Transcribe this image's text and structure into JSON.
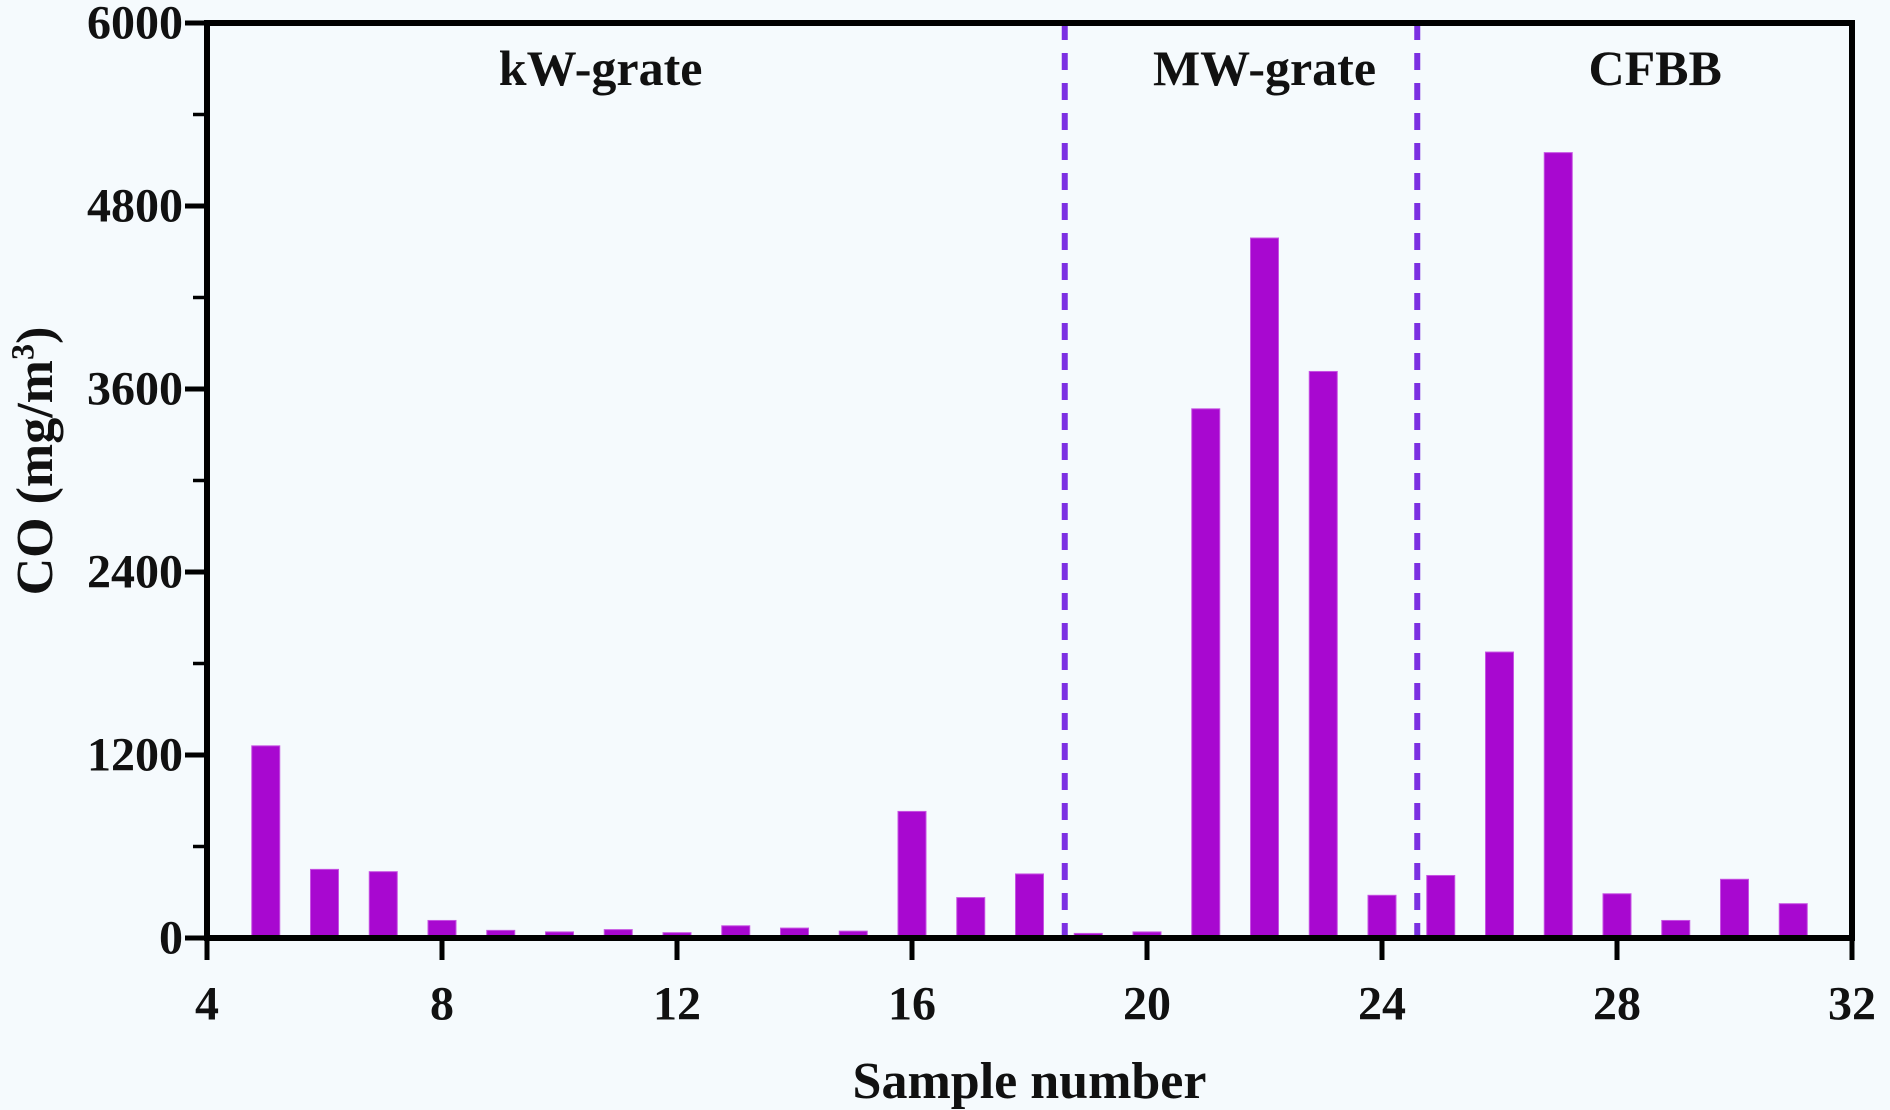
{
  "figure": {
    "background": "#F5FAFD",
    "x_axis_title": "Sample number",
    "y_axis_title_prefix": "CO (mg/m",
    "y_axis_title_sup": "3",
    "y_axis_title_suffix": ")"
  },
  "chart_data": {
    "type": "bar",
    "title": "",
    "xlabel": "Sample number",
    "ylabel": "CO (mg/m3)",
    "xlim": [
      4,
      32
    ],
    "ylim": [
      0,
      6000
    ],
    "x_ticks": [
      4,
      8,
      12,
      16,
      20,
      24,
      28,
      32
    ],
    "y_ticks": [
      0,
      1200,
      2400,
      3600,
      4800,
      6000
    ],
    "y_minor_step": 600,
    "grid": "off",
    "legend": "none",
    "bar_color": "#A808D0",
    "bar_edge_color": "#C653E2",
    "separator_color": "#7B2FE2",
    "axis_color": "#000000",
    "x": [
      5,
      6,
      7,
      8,
      9,
      10,
      11,
      12,
      13,
      14,
      15,
      16,
      17,
      18,
      19,
      20,
      21,
      22,
      23,
      24,
      25,
      26,
      27,
      28,
      29,
      30,
      31
    ],
    "values": [
      1260,
      450,
      435,
      115,
      50,
      40,
      55,
      35,
      80,
      65,
      45,
      830,
      265,
      420,
      30,
      40,
      3470,
      4590,
      3715,
      280,
      410,
      1875,
      5150,
      290,
      115,
      385,
      225
    ],
    "separators_x": [
      18.6,
      24.6
    ],
    "sections": [
      {
        "label": "kW-grate",
        "center_x": 10.7
      },
      {
        "label": "MW-grate",
        "center_x": 22.0
      },
      {
        "label": "CFBB",
        "center_x": 28.65
      }
    ]
  }
}
